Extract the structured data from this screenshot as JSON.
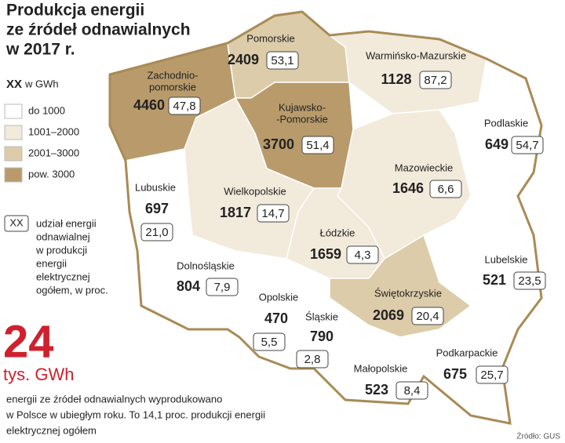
{
  "title": [
    "Produkcja energii",
    "ze źródeł odnawialnych",
    "w 2017 r."
  ],
  "legend": {
    "unit_key": "XX",
    "unit": "w GWh",
    "classes": [
      {
        "label": "do 1000",
        "color": "#ffffff"
      },
      {
        "label": "1001–2000",
        "color": "#f2eadb"
      },
      {
        "label": "2001–3000",
        "color": "#ddcca9"
      },
      {
        "label": "pow. 3000",
        "color": "#b99b6b"
      }
    ],
    "share_key": "XX",
    "share_note": [
      "udział energii",
      "odnawialnej",
      "w produkcji",
      "energii",
      "elektrycznej",
      "ogółem, w proc."
    ]
  },
  "regions": [
    {
      "name": [
        "Zachodnio-",
        "pomorskie"
      ],
      "value": 4460,
      "share": "47,8",
      "color": "#b99b6b"
    },
    {
      "name": [
        "Pomorskie"
      ],
      "value": 2409,
      "share": "53,1",
      "color": "#ddcca9"
    },
    {
      "name": [
        "Warmińsko-Mazurskie"
      ],
      "value": 1128,
      "share": "87,2",
      "color": "#f2eadb"
    },
    {
      "name": [
        "Kujawsko-",
        "-Pomorskie"
      ],
      "value": 3700,
      "share": "51,4",
      "color": "#b99b6b"
    },
    {
      "name": [
        "Podlaskie"
      ],
      "value": 649,
      "share": "54,7",
      "color": "#ffffff"
    },
    {
      "name": [
        "Mazowieckie"
      ],
      "value": 1646,
      "share": "6,6",
      "color": "#f2eadb"
    },
    {
      "name": [
        "Lubuskie"
      ],
      "value": 697,
      "share": "21,0",
      "color": "#ffffff"
    },
    {
      "name": [
        "Wielkopolskie"
      ],
      "value": 1817,
      "share": "14,7",
      "color": "#f2eadb"
    },
    {
      "name": [
        "Łódzkie"
      ],
      "value": 1659,
      "share": "4,3",
      "color": "#f2eadb"
    },
    {
      "name": [
        "Lubelskie"
      ],
      "value": 521,
      "share": "23,5",
      "color": "#ffffff"
    },
    {
      "name": [
        "Dolnośląskie"
      ],
      "value": 804,
      "share": "7,9",
      "color": "#ffffff"
    },
    {
      "name": [
        "Opolskie"
      ],
      "value": 470,
      "share": "5,5",
      "color": "#ffffff"
    },
    {
      "name": [
        "Śląskie"
      ],
      "value": 790,
      "share": "2,8",
      "color": "#ffffff"
    },
    {
      "name": [
        "Świętokrzyskie"
      ],
      "value": 2069,
      "share": "20,4",
      "color": "#ddcca9"
    },
    {
      "name": [
        "Małopolskie"
      ],
      "value": 523,
      "share": "8,4",
      "color": "#ffffff"
    },
    {
      "name": [
        "Podkarpackie"
      ],
      "value": 675,
      "share": "25,7",
      "color": "#ffffff"
    }
  ],
  "total": {
    "value": 24,
    "unit": "tys. GWh",
    "caption": [
      "energii ze źródeł odnawialnych wyprodukowano",
      "w Polsce w ubiegłym roku. To 14,1 proc. produkcji energii",
      "elektrycznej ogółem"
    ]
  },
  "source": "Źródło: GUS"
}
